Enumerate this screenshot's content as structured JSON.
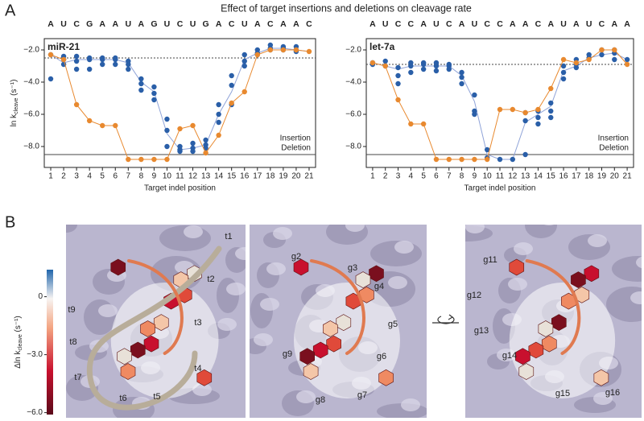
{
  "figure": {
    "panel_a_label": "A",
    "panel_b_label": "B",
    "title": "Effect of target insertions and deletions on cleavage rate"
  },
  "chart_data": [
    {
      "type": "line",
      "title": "miR-21",
      "sequence": [
        "A",
        "U",
        "C",
        "G",
        "A",
        "A",
        "U",
        "A",
        "G",
        "U",
        "C",
        "U",
        "G",
        "A",
        "C",
        "U",
        "A",
        "C",
        "A",
        "A",
        "C"
      ],
      "sequence_colors": [
        "#c9a0a0",
        "#e0302a",
        "#e8892f",
        "#e8892f",
        "#e8892f",
        "#e8892f",
        "#e8892f",
        "#e8892f",
        "#3bb5a8",
        "#3bb5a8",
        "#3bb5a8",
        "#3bb5a8",
        "#e0b020",
        "#e0b020",
        "#e0b020",
        "#e0b020",
        "#6a5fa8",
        "#6a5fa8",
        "#6a5fa8",
        "#6a5fa8",
        "#6a5fa8"
      ],
      "x_label": "Target indel position",
      "y_label": {
        "main": "ln k",
        "sub": "cleave",
        "unit": " (s⁻¹)"
      },
      "xlim": [
        0.5,
        21.5
      ],
      "xticks": [
        1,
        2,
        3,
        4,
        5,
        6,
        7,
        8,
        9,
        10,
        11,
        12,
        13,
        14,
        15,
        16,
        17,
        18,
        19,
        20,
        21
      ],
      "ylim": [
        -9.3,
        -1.3
      ],
      "yticks": [
        {
          "value": -2,
          "label": "−2.0"
        },
        {
          "value": -4,
          "label": "−4.0"
        },
        {
          "value": -6,
          "label": "−6.0"
        },
        {
          "value": -8,
          "label": "−8.0"
        }
      ],
      "hlines": [
        {
          "value": -2.5,
          "style": "dashed"
        },
        {
          "value": -8.5,
          "style": "solid"
        }
      ],
      "legend": "lower right",
      "x": [
        1,
        2,
        3,
        4,
        5,
        6,
        7,
        8,
        9,
        10,
        11,
        12,
        13,
        14,
        15,
        16,
        17,
        18,
        19,
        20,
        21
      ],
      "series": [
        {
          "name": "Insertion",
          "color": "#2a5fa8",
          "line_color": "#8fa3d8",
          "values": [
            -2.3,
            -2.8,
            -2.6,
            -2.6,
            -2.6,
            -2.6,
            -2.8,
            -4.0,
            -4.6,
            -7.2,
            -8.2,
            -8.1,
            -7.9,
            -6.0,
            -4.6,
            -2.6,
            -2.2,
            -1.9,
            -1.9,
            -2.0,
            -2.1
          ],
          "points_x": [
            1,
            1,
            2,
            2,
            2,
            3,
            3,
            3,
            4,
            4,
            4,
            5,
            5,
            5,
            6,
            6,
            6,
            7,
            7,
            7,
            8,
            8,
            8,
            9,
            9,
            9,
            10,
            10,
            10,
            11,
            11,
            11,
            12,
            12,
            12,
            13,
            13,
            13,
            14,
            14,
            14,
            15,
            15,
            15,
            16,
            16,
            16,
            17,
            17,
            17,
            18,
            18,
            18,
            19,
            19,
            19,
            20,
            20,
            20
          ],
          "points_y": [
            -2.3,
            -3.8,
            -2.4,
            -2.6,
            -2.9,
            -2.4,
            -2.7,
            -3.2,
            -2.5,
            -2.6,
            -3.2,
            -2.5,
            -2.6,
            -2.9,
            -2.5,
            -2.6,
            -2.9,
            -2.7,
            -2.9,
            -3.2,
            -3.8,
            -4.1,
            -4.5,
            -4.3,
            -4.7,
            -5.1,
            -6.3,
            -7.0,
            -8.0,
            -8.0,
            -8.2,
            -8.3,
            -7.8,
            -8.1,
            -8.3,
            -7.6,
            -7.9,
            -8.1,
            -5.4,
            -6.0,
            -6.5,
            -3.6,
            -4.2,
            -5.4,
            -2.3,
            -2.7,
            -3.0,
            -2.0,
            -2.2,
            -2.3,
            -1.7,
            -1.9,
            -2.0,
            -1.8,
            -1.9,
            -2.0,
            -1.8,
            -2.0,
            -2.1
          ]
        },
        {
          "name": "Deletion",
          "color": "#e8892f",
          "line_color": "#e8892f",
          "values": [
            -2.3,
            -2.6,
            -5.4,
            -6.4,
            -6.7,
            -6.7,
            -8.8,
            -8.8,
            -8.8,
            -8.8,
            -6.9,
            -6.7,
            -8.4,
            -7.3,
            -5.3,
            -4.6,
            -2.3,
            -2.0,
            -2.0,
            -2.0,
            -2.1
          ]
        }
      ]
    },
    {
      "type": "line",
      "title": "let-7a",
      "sequence": [
        "A",
        "U",
        "C",
        "C",
        "A",
        "U",
        "C",
        "A",
        "U",
        "C",
        "C",
        "A",
        "A",
        "C",
        "A",
        "U",
        "A",
        "U",
        "C",
        "A",
        "A"
      ],
      "sequence_colors": [
        "#c9a0a0",
        "#e0302a",
        "#e8892f",
        "#e8892f",
        "#e8892f",
        "#e8892f",
        "#e8892f",
        "#e8892f",
        "#3bb5a8",
        "#3bb5a8",
        "#3bb5a8",
        "#3bb5a8",
        "#e0b020",
        "#e0b020",
        "#e0b020",
        "#e0b020",
        "#6a5fa8",
        "#6a5fa8",
        "#6a5fa8",
        "#6a5fa8",
        "#6a5fa8"
      ],
      "x_label": "Target indel position",
      "xlim": [
        0.5,
        21.5
      ],
      "xticks": [
        1,
        2,
        3,
        4,
        5,
        6,
        7,
        8,
        9,
        10,
        11,
        12,
        13,
        14,
        15,
        16,
        17,
        18,
        19,
        20,
        21
      ],
      "ylim": [
        -9.3,
        -1.3
      ],
      "yticks": [
        {
          "value": -2,
          "label": "−2.0"
        },
        {
          "value": -4,
          "label": "−4.0"
        },
        {
          "value": -6,
          "label": "−6.0"
        },
        {
          "value": -8,
          "label": "−8.0"
        }
      ],
      "hlines": [
        {
          "value": -2.9,
          "style": "dashed"
        },
        {
          "value": -8.5,
          "style": "solid"
        }
      ],
      "legend": "lower right",
      "x": [
        1,
        2,
        3,
        4,
        5,
        6,
        7,
        8,
        9,
        10,
        11,
        12,
        13,
        14,
        15,
        16,
        17,
        18,
        19,
        20,
        21
      ],
      "series": [
        {
          "name": "Insertion",
          "color": "#2a5fa8",
          "line_color": "#8fa3d8",
          "values": [
            -2.8,
            -3.0,
            -3.2,
            -3.0,
            -3.0,
            -3.0,
            -3.0,
            -3.6,
            -5.2,
            -8.5,
            -8.8,
            -8.8,
            -6.5,
            -6.0,
            -5.5,
            -3.3,
            -3.0,
            -2.5,
            -2.3,
            -2.2,
            -2.6
          ],
          "points_x": [
            1,
            1,
            2,
            2,
            3,
            3,
            3,
            4,
            4,
            4,
            5,
            5,
            5,
            6,
            6,
            6,
            7,
            7,
            7,
            8,
            8,
            8,
            9,
            9,
            9,
            10,
            10,
            11,
            12,
            13,
            13,
            13,
            14,
            14,
            14,
            15,
            15,
            15,
            16,
            16,
            16,
            17,
            17,
            17,
            18,
            18,
            19,
            19,
            20,
            20,
            20,
            21
          ],
          "points_y": [
            -2.8,
            -2.9,
            -2.7,
            -3.0,
            -3.1,
            -3.6,
            -4.1,
            -2.8,
            -3.0,
            -3.4,
            -2.8,
            -2.9,
            -3.2,
            -2.8,
            -3.0,
            -3.3,
            -2.9,
            -3.0,
            -3.2,
            -3.4,
            -3.7,
            -4.1,
            -4.8,
            -5.8,
            -6.0,
            -8.2,
            -8.7,
            -8.8,
            -8.8,
            -5.9,
            -6.4,
            -8.5,
            -5.8,
            -6.2,
            -6.6,
            -5.3,
            -5.8,
            -6.2,
            -3.0,
            -3.4,
            -3.8,
            -2.6,
            -2.9,
            -3.1,
            -2.3,
            -2.5,
            -2.0,
            -2.3,
            -2.0,
            -2.2,
            -2.6,
            -2.6
          ]
        },
        {
          "name": "Deletion",
          "color": "#e8892f",
          "line_color": "#e8892f",
          "values": [
            -2.8,
            -3.0,
            -5.1,
            -6.6,
            -6.6,
            -8.8,
            -8.8,
            -8.8,
            -8.8,
            -8.8,
            -5.7,
            -5.7,
            -5.9,
            -5.7,
            -4.4,
            -2.6,
            -2.8,
            -2.6,
            -2.0,
            -2.0,
            -2.9
          ]
        }
      ]
    }
  ],
  "panel_b": {
    "colorbar": {
      "title": {
        "main": "Δln k",
        "sub": "cleave",
        "unit": " (s⁻¹)"
      },
      "lim": [
        -6.1,
        1.4
      ],
      "ticks": [
        0,
        {
          "value": -3,
          "label": "−3.0"
        },
        {
          "value": -6,
          "label": "−6.0"
        }
      ]
    },
    "images": [
      {
        "label_color": "#3a4fa8",
        "labels": [
          "t1",
          "t2",
          "t3",
          "t4",
          "t5",
          "t6",
          "t7",
          "t8",
          "t9"
        ]
      },
      {
        "label_color": "#e0302a",
        "labels": [
          "g2",
          "g3",
          "g4",
          "g5",
          "g6",
          "g7",
          "g8",
          "g9"
        ]
      },
      {
        "label_color": "#e0302a",
        "labels": [
          "g11",
          "g12",
          "g13",
          "g14",
          "g15",
          "g16"
        ]
      }
    ]
  }
}
